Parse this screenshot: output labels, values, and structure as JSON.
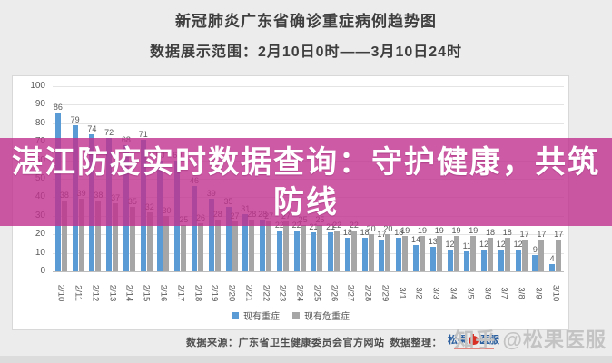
{
  "header": {
    "title": "新冠肺炎广东省确诊重症病例趋势图",
    "subtitle": "数据展示范围：2月10日0时——3月10日24时"
  },
  "banner": {
    "text": "湛江防疫实时数据查询：守护健康，共筑防线",
    "color": "#c1318f"
  },
  "chart_data": {
    "type": "bar",
    "title": "新冠肺炎广东省确诊重症病例趋势图",
    "xlabel": "",
    "ylabel": "",
    "ylim": [
      0,
      100
    ],
    "yticks": [
      0,
      10,
      20,
      30,
      40,
      50,
      60,
      70,
      80,
      90,
      100
    ],
    "grid": true,
    "legend_position": "bottom",
    "data_labels": true,
    "categories": [
      "2/10",
      "2/11",
      "2/12",
      "2/13",
      "2/14",
      "2/15",
      "2/16",
      "2/17",
      "2/18",
      "2/19",
      "2/20",
      "2/21",
      "2/22",
      "2/23",
      "2/24",
      "2/25",
      "2/26",
      "2/27",
      "2/28",
      "2/29",
      "3/1",
      "3/2",
      "3/3",
      "3/4",
      "3/5",
      "3/6",
      "3/7",
      "3/8",
      "3/9",
      "3/10"
    ],
    "series": [
      {
        "name": "现有重症",
        "color": "#5b9bd5",
        "values": [
          86,
          79,
          74,
          72,
          68,
          71,
          60,
          60,
          46,
          39,
          35,
          31,
          28,
          22,
          22,
          21,
          21,
          18,
          18,
          17,
          18,
          14,
          13,
          12,
          11,
          12,
          12,
          12,
          9,
          4
        ]
      },
      {
        "name": "现有危重症",
        "color": "#a6a6a6",
        "values": [
          38,
          39,
          38,
          37,
          35,
          32,
          30,
          25,
          26,
          28,
          27,
          28,
          27,
          27,
          25,
          25,
          22,
          22,
          20,
          20,
          19,
          19,
          19,
          19,
          19,
          18,
          18,
          17,
          17,
          17
        ]
      }
    ]
  },
  "footer": {
    "source_label": "数据来源：广东省卫生健康委员会官方网站",
    "credit_label": "数据整理：",
    "logo": {
      "part1": "松果",
      "part2": "医服"
    },
    "watermark": "知乎 @松果医服"
  }
}
